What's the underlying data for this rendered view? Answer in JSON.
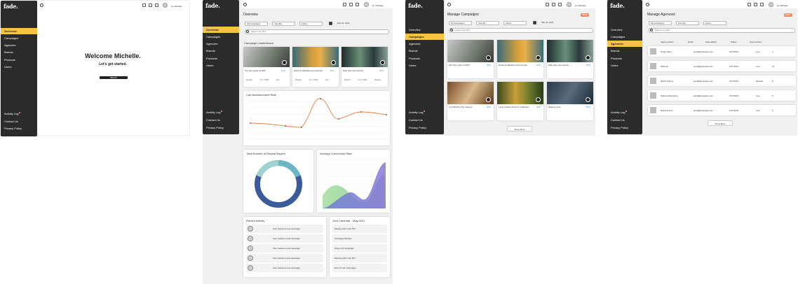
{
  "brand": {
    "logo": "fade."
  },
  "nav": [
    "Overview",
    "Campaigns",
    "Agencies",
    "Brands",
    "Products",
    "Users"
  ],
  "footer": [
    "Activity Log",
    "Contact Us",
    "Privacy Policy"
  ],
  "user": {
    "label": "Hi, Michelle"
  },
  "beta_label": "BETA",
  "screen1": {
    "welcome": "Welcome Michelle.",
    "subtitle": "Let's get started.",
    "button": "BEGIN"
  },
  "screen2": {
    "title": "Overview",
    "filters": [
      "All Campaigns",
      "View By...",
      "Active",
      "Mar 20, 2021"
    ],
    "search_placeholder": "Search any filter",
    "leaderboard_title": "Campaign Leaderboard",
    "campaigns": [
      {
        "name": "GQ Top Looks of 2021",
        "rate": "50%",
        "stats": [
          "Director",
          "12 / 1 2021",
          "Live"
        ]
      },
      {
        "name": "Dolce & Gabbana Commercial",
        "rate": "50%",
        "stats": [
          "Director",
          "12 / 1 2021",
          "Live"
        ]
      },
      {
        "name": "Nike Lab Commercial",
        "rate": "50%",
        "stats": [
          "Director",
          "12 / 1 2021",
          "Paused"
        ]
      }
    ],
    "cart_title": "Cart Abandonment Rate",
    "repeat_title": "Total Number of Repeat Buyers",
    "conversion_title": "Average Conversion Rate",
    "recent_title": "Recent Activity",
    "activities": [
      "User started a new campaign",
      "User started a new campaign",
      "User started a new campaign",
      "User started a new campaign",
      "User started a new campaign"
    ],
    "calendar_title": "Your Calendar - May 2021",
    "events": [
      "Meeting with Lush PM",
      "Campaign Review",
      "Setup GQ Campaign",
      "Meeting with Lush PM",
      "End of Lush Campaign"
    ]
  },
  "screen3": {
    "title": "Manage Campaigns",
    "filters": [
      "All Campaigns",
      "View By...",
      "Active",
      "Mar 20, 2021"
    ],
    "search_placeholder": "Search any filter",
    "campaigns": [
      {
        "name": "GQ Top Looks of 2021",
        "rate": "50%"
      },
      {
        "name": "Dolce & Gabbana Commercial",
        "rate": "50%"
      },
      {
        "name": "Nike Lab Commercial",
        "rate": "50%"
      },
      {
        "name": "Lush Behind The Scenes",
        "rate": "50%"
      },
      {
        "name": "Louis Vuitton Summer Collection",
        "rate": "50%"
      },
      {
        "name": "Beats In One",
        "rate": "50%"
      }
    ],
    "show_more": "Show More"
  },
  "screen4": {
    "title": "Manage Agencies",
    "filters": [
      "All Campaigns",
      "View By...",
      "Active"
    ],
    "search_placeholder": "Search any filter",
    "columns": [
      "Agency Name",
      "Email",
      "Date Added",
      "Status",
      "Users Active"
    ],
    "rows": [
      {
        "name": "Smart Sites",
        "email": "email@example.com",
        "date": "3/17/2021",
        "status": "Live",
        "users": "4"
      },
      {
        "name": "Webunit",
        "email": "email@example.com",
        "date": "3/17/2021",
        "status": "Live",
        "users": "12"
      },
      {
        "name": "Metric Theory",
        "email": "email@example.com",
        "date": "3/17/2021",
        "status": "Paused",
        "users": "8"
      },
      {
        "name": "Spiked Advertising",
        "email": "email@example.com",
        "date": "3/17/2021",
        "status": "Live",
        "users": "5"
      },
      {
        "name": "Brand Tuitive",
        "email": "email@example.com",
        "date": "3/17/2021",
        "status": "Live",
        "users": "6"
      }
    ],
    "show_more": "Show More"
  },
  "colors": {
    "sidebar": "#2b2b2b",
    "accent": "#f5c542",
    "beta": "#ef8a5b",
    "cart_line": "#e87d3e",
    "donut_outer": "#3b5b9a",
    "donut_inner": "#5fb3b3"
  }
}
